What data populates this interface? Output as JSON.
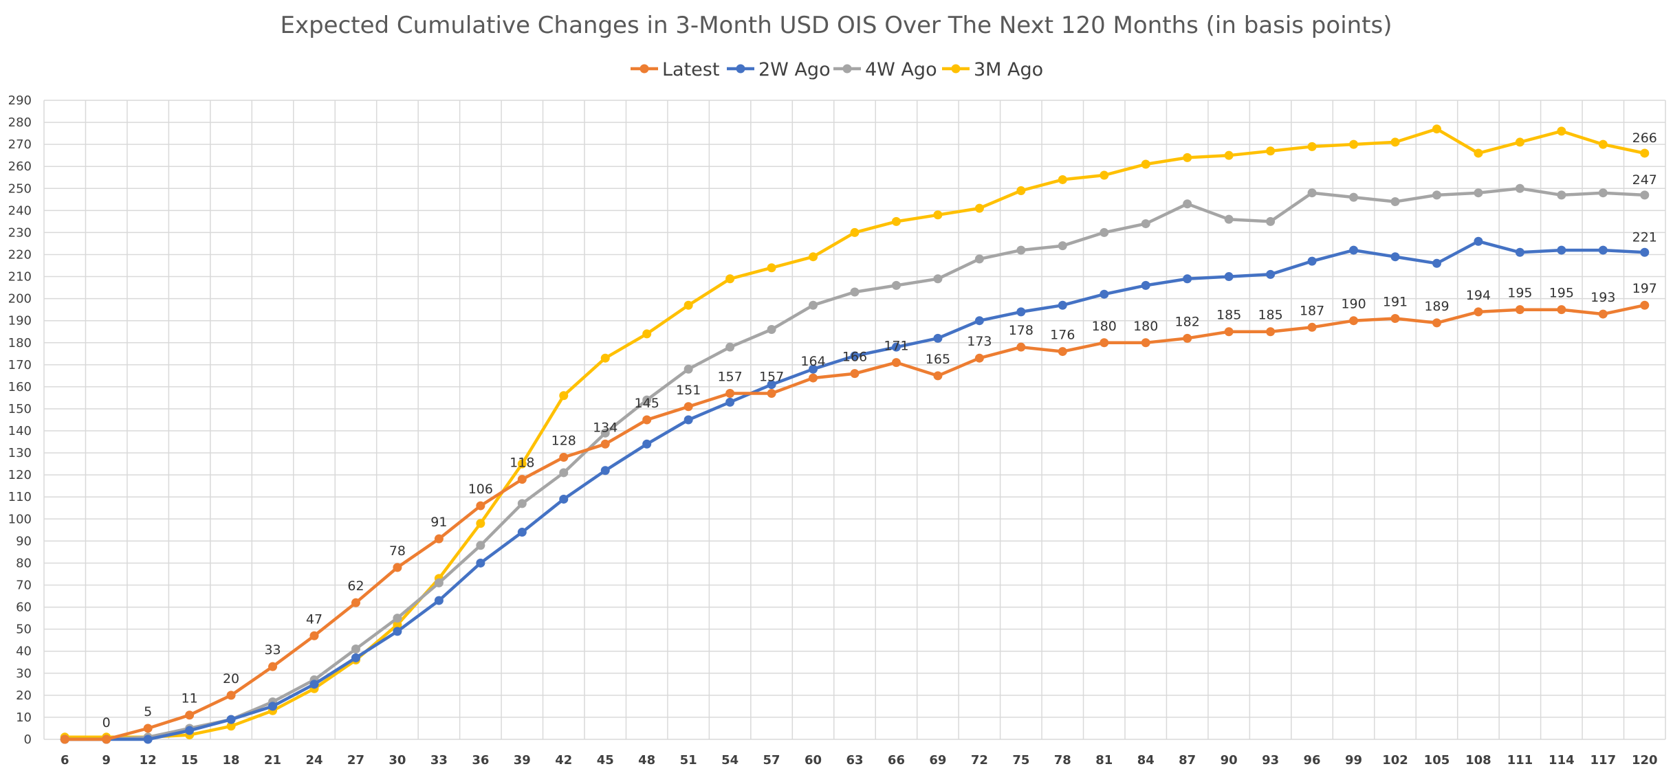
{
  "chart_data": {
    "type": "line",
    "title": "Expected Cumulative Changes in 3-Month USD OIS Over The Next 120 Months (in basis points)",
    "xlabel": "",
    "ylabel": "",
    "x": [
      6,
      9,
      12,
      15,
      18,
      21,
      24,
      27,
      30,
      33,
      36,
      39,
      42,
      45,
      48,
      51,
      54,
      57,
      60,
      63,
      66,
      69,
      72,
      75,
      78,
      81,
      84,
      87,
      90,
      93,
      96,
      99,
      102,
      105,
      108,
      111,
      114,
      117,
      120
    ],
    "ylim": [
      0,
      290
    ],
    "yticks": [
      0,
      10,
      20,
      30,
      40,
      50,
      60,
      70,
      80,
      90,
      100,
      110,
      120,
      130,
      140,
      150,
      160,
      170,
      180,
      190,
      200,
      210,
      220,
      230,
      240,
      250,
      260,
      270,
      280,
      290
    ],
    "grid": true,
    "legend_position": "top-center",
    "series": [
      {
        "name": "Latest",
        "color": "#ED7D31",
        "values": [
          0,
          0,
          5,
          11,
          20,
          33,
          47,
          62,
          78,
          91,
          106,
          118,
          128,
          134,
          145,
          151,
          157,
          157,
          164,
          166,
          171,
          165,
          173,
          178,
          176,
          180,
          180,
          182,
          185,
          185,
          187,
          190,
          191,
          189,
          194,
          195,
          195,
          193,
          197
        ],
        "labels": [
          "",
          "0",
          "5",
          "11",
          "20",
          "33",
          "47",
          "62",
          "78",
          "91",
          "106",
          "118",
          "128",
          "134",
          "145",
          "151",
          "157",
          "157",
          "164",
          "166",
          "171",
          "165",
          "173",
          "178",
          "176",
          "180",
          "180",
          "182",
          "185",
          "185",
          "187",
          "190",
          "191",
          "189",
          "194",
          "195",
          "195",
          "193",
          "197"
        ]
      },
      {
        "name": "2W Ago",
        "color": "#4472C4",
        "values": [
          0,
          0,
          0,
          4,
          9,
          15,
          25,
          37,
          49,
          63,
          80,
          94,
          109,
          122,
          134,
          145,
          153,
          161,
          168,
          174,
          178,
          182,
          190,
          194,
          197,
          202,
          206,
          209,
          210,
          211,
          217,
          222,
          219,
          216,
          226,
          221,
          222,
          222,
          221
        ],
        "end_label": "221"
      },
      {
        "name": "4W Ago",
        "color": "#A5A5A5",
        "values": [
          0,
          0,
          1,
          5,
          9,
          17,
          27,
          41,
          55,
          71,
          88,
          107,
          121,
          139,
          154,
          168,
          178,
          186,
          197,
          203,
          206,
          209,
          218,
          222,
          224,
          230,
          234,
          243,
          236,
          235,
          248,
          246,
          244,
          247,
          248,
          250,
          247,
          248,
          247
        ],
        "end_label": "247"
      },
      {
        "name": "3M Ago",
        "color": "#FFC000",
        "values": [
          1,
          1,
          1,
          2,
          6,
          13,
          23,
          36,
          52,
          73,
          98,
          125,
          156,
          173,
          184,
          197,
          209,
          214,
          219,
          230,
          235,
          238,
          241,
          249,
          254,
          256,
          261,
          264,
          265,
          267,
          269,
          270,
          271,
          277,
          266,
          271,
          276,
          270,
          266
        ],
        "end_label": "266"
      }
    ]
  }
}
